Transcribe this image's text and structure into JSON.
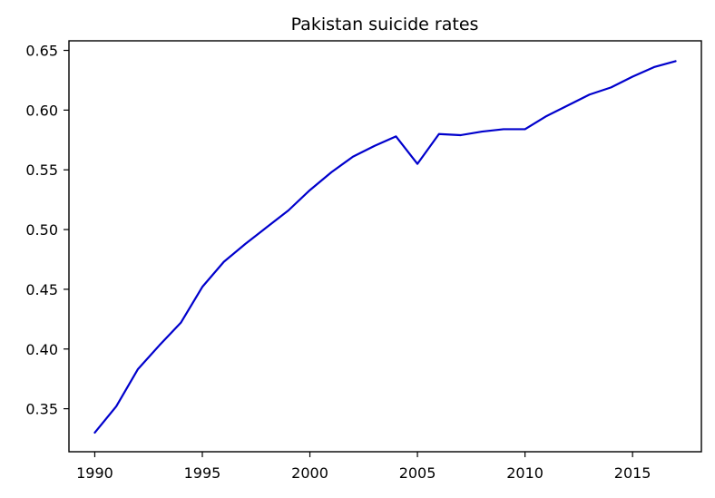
{
  "chart_data": {
    "type": "line",
    "title": "Pakistan suicide rates",
    "xlabel": "",
    "ylabel": "",
    "xlim": [
      1988.8,
      2018.2
    ],
    "ylim": [
      0.314,
      0.658
    ],
    "x_ticks": [
      1990,
      1995,
      2000,
      2005,
      2010,
      2015
    ],
    "y_ticks": [
      0.35,
      0.4,
      0.45,
      0.5,
      0.55,
      0.6,
      0.65
    ],
    "y_tick_decimals": 2,
    "grid": false,
    "legend": "none",
    "series": [
      {
        "color": "#0000cc",
        "x": [
          1990,
          1991,
          1992,
          1993,
          1994,
          1995,
          1996,
          1997,
          1998,
          1999,
          2000,
          2001,
          2002,
          2003,
          2004,
          2005,
          2006,
          2007,
          2008,
          2009,
          2010,
          2011,
          2012,
          2013,
          2014,
          2015,
          2016,
          2017
        ],
        "values": [
          0.33,
          0.352,
          0.383,
          0.403,
          0.422,
          0.452,
          0.473,
          0.488,
          0.502,
          0.516,
          0.533,
          0.548,
          0.561,
          0.57,
          0.578,
          0.555,
          0.58,
          0.579,
          0.582,
          0.584,
          0.584,
          0.595,
          0.604,
          0.613,
          0.619,
          0.628,
          0.636,
          0.641
        ]
      }
    ]
  }
}
